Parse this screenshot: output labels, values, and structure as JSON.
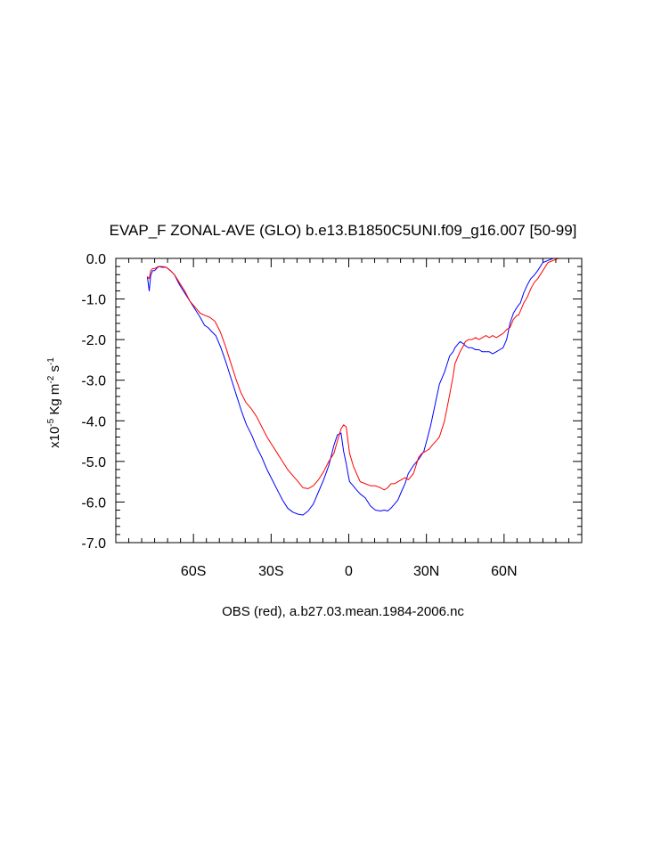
{
  "chart_data": {
    "type": "line",
    "title": "EVAP_F ZONAL-AVE (GLO) b.e13.B1850C5UNI.f09_g16.007 [50-99]",
    "xlabel": "OBS (red), a.b27.03.mean.1984-2006.nc",
    "ylabel": {
      "prefix": "x10",
      "exp1": "-5",
      "mid": " Kg m",
      "exp2": "-2",
      "mid2": " s",
      "exp3": "-1"
    },
    "xlim": [
      -90,
      90
    ],
    "ylim": [
      -7,
      0
    ],
    "xticks": [
      {
        "value": -60,
        "label": "60S"
      },
      {
        "value": -30,
        "label": "30S"
      },
      {
        "value": 0,
        "label": "0"
      },
      {
        "value": 30,
        "label": "30N"
      },
      {
        "value": 60,
        "label": "60N"
      }
    ],
    "yticks": [
      {
        "value": 0,
        "label": "0.0"
      },
      {
        "value": -1,
        "label": "-1.0"
      },
      {
        "value": -2,
        "label": "-2.0"
      },
      {
        "value": -3,
        "label": "-3.0"
      },
      {
        "value": -4,
        "label": "-4.0"
      },
      {
        "value": -5,
        "label": "-5.0"
      },
      {
        "value": -6,
        "label": "-6.0"
      },
      {
        "value": -7,
        "label": "-7.0"
      }
    ],
    "grid": false,
    "series": [
      {
        "color": "#0000ff",
        "x": [
          -77.8,
          -77.1,
          -76.5,
          -75.8,
          -75,
          -73.5,
          -72,
          -70.5,
          -68.9,
          -67.4,
          -65.4,
          -63.4,
          -61.4,
          -59.4,
          -57.4,
          -55.7,
          -54.4,
          -53,
          -51.4,
          -49.4,
          -47.5,
          -45.5,
          -43.5,
          -41.5,
          -39.5,
          -37.5,
          -35.6,
          -33.6,
          -31.6,
          -29.6,
          -27.6,
          -25.6,
          -23.6,
          -21.6,
          -19.6,
          -17.7,
          -15.7,
          -13.7,
          -11.7,
          -9.7,
          -7.7,
          -5.7,
          -4.4,
          -3,
          -2,
          -1,
          -0.3,
          0.3,
          1.7,
          3,
          4.4,
          6.4,
          8.4,
          10.3,
          12.3,
          13.7,
          15,
          16.3,
          17.7,
          19,
          20.3,
          21.7,
          23,
          25,
          27,
          29,
          30.3,
          31.7,
          33,
          35,
          37,
          39,
          40.3,
          41,
          42.3,
          43,
          44.3,
          45,
          46.3,
          47.6,
          49,
          50.3,
          51.6,
          53,
          54.3,
          55.6,
          57,
          58.3,
          59.6,
          61,
          62.3,
          63.6,
          65,
          65.6,
          66.3,
          67.6,
          69,
          70.3,
          71.6,
          73,
          75,
          77,
          79,
          81,
          83,
          85,
          87,
          89
        ],
        "y": [
          -0.45,
          -0.8,
          -0.42,
          -0.3,
          -0.3,
          -0.2,
          -0.22,
          -0.22,
          -0.3,
          -0.4,
          -0.65,
          -0.85,
          -1.05,
          -1.25,
          -1.45,
          -1.65,
          -1.7,
          -1.8,
          -1.9,
          -2.2,
          -2.55,
          -2.95,
          -3.35,
          -3.75,
          -4.1,
          -4.35,
          -4.65,
          -4.9,
          -5.2,
          -5.45,
          -5.7,
          -5.95,
          -6.15,
          -6.25,
          -6.3,
          -6.32,
          -6.22,
          -6.05,
          -5.75,
          -5.45,
          -5.1,
          -4.6,
          -4.35,
          -4.3,
          -4.75,
          -5.05,
          -5.3,
          -5.5,
          -5.6,
          -5.7,
          -5.8,
          -5.9,
          -6.1,
          -6.2,
          -6.22,
          -6.2,
          -6.22,
          -6.15,
          -6.05,
          -5.95,
          -5.75,
          -5.55,
          -5.3,
          -5.1,
          -4.95,
          -4.75,
          -4.45,
          -4.1,
          -3.7,
          -3.1,
          -2.8,
          -2.4,
          -2.3,
          -2.2,
          -2.1,
          -2.05,
          -2.1,
          -2.15,
          -2.2,
          -2.2,
          -2.25,
          -2.25,
          -2.3,
          -2.3,
          -2.3,
          -2.35,
          -2.3,
          -2.25,
          -2.2,
          -2.0,
          -1.6,
          -1.35,
          -1.2,
          -1.15,
          -1.1,
          -0.85,
          -0.65,
          -0.5,
          -0.42,
          -0.3,
          -0.1,
          -0.05,
          0,
          0,
          0,
          0,
          0,
          0
        ]
      },
      {
        "color": "#ff0000",
        "x": [
          -77.8,
          -77.1,
          -76.5,
          -75.8,
          -75,
          -73.5,
          -72,
          -70.5,
          -68.9,
          -67.4,
          -65.4,
          -63.4,
          -61.4,
          -59.4,
          -57.4,
          -55.7,
          -53.7,
          -51.7,
          -49.7,
          -47.7,
          -45.7,
          -43.7,
          -41.7,
          -39.7,
          -37.7,
          -35.6,
          -33.6,
          -31.6,
          -29.6,
          -27.6,
          -25.6,
          -23.6,
          -21.6,
          -19.6,
          -17.7,
          -15.7,
          -13.7,
          -11.7,
          -9.7,
          -7.7,
          -5.7,
          -4.4,
          -3,
          -2,
          -1,
          -0.3,
          0.3,
          1.7,
          3,
          4.4,
          6.4,
          8.4,
          10.3,
          12.3,
          13.7,
          15,
          16.3,
          17.7,
          19,
          20.3,
          21.7,
          23,
          25,
          27,
          28.3,
          29.7,
          31,
          32.3,
          33.7,
          35,
          37,
          39,
          40.3,
          41,
          42.3,
          43,
          44.3,
          45,
          46.3,
          47.6,
          49,
          50.3,
          51.6,
          53,
          54.3,
          55.6,
          57,
          58.3,
          59.6,
          61,
          62.3,
          63.6,
          65,
          65.6,
          66.3,
          67.6,
          69,
          70.3,
          71.6,
          73,
          75,
          77,
          79,
          81,
          83,
          85,
          87,
          89
        ],
        "y": [
          -0.45,
          -0.5,
          -0.3,
          -0.25,
          -0.25,
          -0.2,
          -0.2,
          -0.22,
          -0.3,
          -0.4,
          -0.6,
          -0.8,
          -1.05,
          -1.2,
          -1.35,
          -1.4,
          -1.45,
          -1.55,
          -1.8,
          -2.15,
          -2.55,
          -2.95,
          -3.3,
          -3.55,
          -3.7,
          -3.9,
          -4.15,
          -4.4,
          -4.6,
          -4.8,
          -5.0,
          -5.2,
          -5.35,
          -5.5,
          -5.65,
          -5.67,
          -5.6,
          -5.45,
          -5.25,
          -5.0,
          -4.8,
          -4.5,
          -4.2,
          -4.1,
          -4.15,
          -4.5,
          -4.8,
          -5.1,
          -5.3,
          -5.5,
          -5.55,
          -5.6,
          -5.6,
          -5.65,
          -5.7,
          -5.65,
          -5.55,
          -5.55,
          -5.5,
          -5.45,
          -5.4,
          -5.45,
          -5.3,
          -4.9,
          -4.8,
          -4.75,
          -4.7,
          -4.6,
          -4.5,
          -4.4,
          -4.0,
          -3.35,
          -2.9,
          -2.6,
          -2.4,
          -2.3,
          -2.15,
          -2.05,
          -2.0,
          -2.0,
          -1.95,
          -2.0,
          -1.95,
          -1.9,
          -1.95,
          -1.9,
          -1.95,
          -1.9,
          -1.85,
          -1.75,
          -1.7,
          -1.5,
          -1.4,
          -1.4,
          -1.3,
          -1.1,
          -0.95,
          -0.75,
          -0.6,
          -0.5,
          -0.3,
          -0.1,
          -0.05,
          0,
          0,
          0,
          0,
          0
        ]
      }
    ]
  }
}
